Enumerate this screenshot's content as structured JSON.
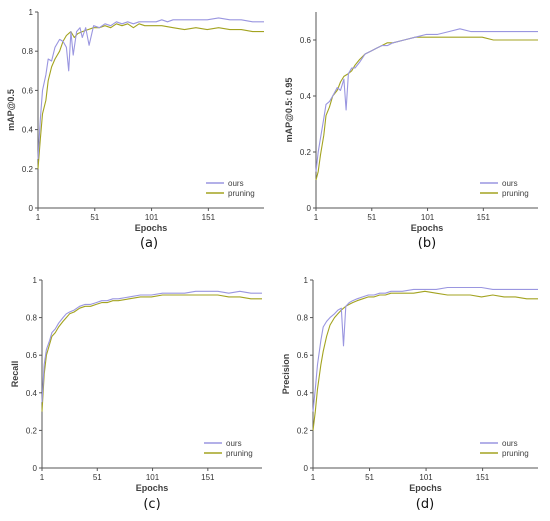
{
  "colors": {
    "ours": "#9a96e0",
    "pruning": "#a3a320",
    "axis": "#555555"
  },
  "legend": [
    "ours",
    "pruning"
  ],
  "chart_data": [
    {
      "type": "line",
      "caption": "(a)",
      "xlabel": "Epochs",
      "ylabel": "mAP@0.5",
      "xticks": [
        "1",
        "51",
        "101",
        "151"
      ],
      "yticks": [
        "0",
        "0.2",
        "0.4",
        "0.6",
        "0.8",
        "1"
      ],
      "xlim": [
        1,
        200
      ],
      "ylim": [
        0,
        1
      ],
      "legend_position": "bottom-right",
      "series": [
        {
          "name": "ours",
          "x": [
            1,
            3,
            5,
            8,
            10,
            13,
            16,
            20,
            23,
            26,
            28,
            30,
            32,
            35,
            38,
            40,
            43,
            46,
            50,
            55,
            60,
            65,
            70,
            75,
            80,
            85,
            90,
            95,
            100,
            105,
            110,
            115,
            120,
            130,
            140,
            150,
            160,
            170,
            180,
            190,
            200
          ],
          "values": [
            0.25,
            0.45,
            0.6,
            0.68,
            0.76,
            0.75,
            0.82,
            0.86,
            0.85,
            0.82,
            0.7,
            0.9,
            0.78,
            0.9,
            0.92,
            0.87,
            0.92,
            0.83,
            0.93,
            0.92,
            0.94,
            0.93,
            0.95,
            0.94,
            0.95,
            0.94,
            0.95,
            0.95,
            0.95,
            0.95,
            0.96,
            0.95,
            0.96,
            0.96,
            0.96,
            0.96,
            0.97,
            0.96,
            0.96,
            0.95,
            0.95
          ]
        },
        {
          "name": "pruning",
          "x": [
            1,
            3,
            5,
            8,
            10,
            13,
            16,
            20,
            23,
            26,
            30,
            33,
            36,
            40,
            45,
            50,
            55,
            60,
            65,
            70,
            75,
            80,
            85,
            90,
            95,
            100,
            110,
            120,
            130,
            140,
            150,
            160,
            170,
            180,
            190,
            200
          ],
          "values": [
            0.2,
            0.35,
            0.48,
            0.55,
            0.65,
            0.72,
            0.76,
            0.8,
            0.85,
            0.88,
            0.9,
            0.87,
            0.89,
            0.9,
            0.91,
            0.92,
            0.92,
            0.93,
            0.92,
            0.94,
            0.93,
            0.94,
            0.92,
            0.94,
            0.93,
            0.93,
            0.93,
            0.92,
            0.91,
            0.92,
            0.91,
            0.92,
            0.91,
            0.91,
            0.9,
            0.9
          ]
        }
      ]
    },
    {
      "type": "line",
      "caption": "(b)",
      "xlabel": "Epochs",
      "ylabel": "mAP@0.5: 0.95",
      "xticks": [
        "1",
        "51",
        "101",
        "151"
      ],
      "yticks": [
        "0",
        "0.2",
        "0.4",
        "0.6"
      ],
      "xlim": [
        1,
        200
      ],
      "ylim": [
        0,
        0.7
      ],
      "legend_position": "bottom-right",
      "series": [
        {
          "name": "ours",
          "x": [
            1,
            3,
            5,
            8,
            10,
            13,
            16,
            20,
            23,
            26,
            28,
            30,
            33,
            36,
            40,
            45,
            50,
            55,
            60,
            65,
            70,
            80,
            90,
            100,
            110,
            120,
            130,
            140,
            150,
            160,
            170,
            180,
            190,
            200
          ],
          "values": [
            0.13,
            0.2,
            0.25,
            0.32,
            0.37,
            0.38,
            0.4,
            0.43,
            0.42,
            0.46,
            0.35,
            0.48,
            0.5,
            0.5,
            0.52,
            0.55,
            0.56,
            0.57,
            0.58,
            0.58,
            0.59,
            0.6,
            0.61,
            0.62,
            0.62,
            0.63,
            0.64,
            0.63,
            0.63,
            0.63,
            0.63,
            0.63,
            0.63,
            0.63
          ]
        },
        {
          "name": "pruning",
          "x": [
            1,
            3,
            5,
            8,
            10,
            13,
            16,
            20,
            23,
            26,
            30,
            33,
            36,
            40,
            45,
            50,
            55,
            60,
            65,
            70,
            80,
            90,
            100,
            110,
            120,
            130,
            140,
            150,
            160,
            170,
            180,
            190,
            200
          ],
          "values": [
            0.1,
            0.13,
            0.19,
            0.26,
            0.33,
            0.36,
            0.4,
            0.42,
            0.45,
            0.47,
            0.48,
            0.49,
            0.51,
            0.53,
            0.55,
            0.56,
            0.57,
            0.58,
            0.59,
            0.59,
            0.6,
            0.61,
            0.61,
            0.61,
            0.61,
            0.61,
            0.61,
            0.61,
            0.6,
            0.6,
            0.6,
            0.6,
            0.6
          ]
        }
      ]
    },
    {
      "type": "line",
      "caption": "(c)",
      "xlabel": "Epochs",
      "ylabel": "Recall",
      "xticks": [
        "1",
        "51",
        "101",
        "151"
      ],
      "yticks": [
        "0",
        "0.2",
        "0.4",
        "0.6",
        "0.8",
        "1"
      ],
      "xlim": [
        1,
        200
      ],
      "ylim": [
        0,
        1
      ],
      "legend_position": "bottom-right",
      "series": [
        {
          "name": "ours",
          "x": [
            1,
            3,
            5,
            8,
            10,
            13,
            16,
            20,
            23,
            26,
            30,
            35,
            40,
            45,
            50,
            55,
            60,
            65,
            70,
            80,
            90,
            100,
            110,
            120,
            130,
            140,
            150,
            160,
            170,
            180,
            190,
            200
          ],
          "values": [
            0.35,
            0.55,
            0.63,
            0.68,
            0.72,
            0.74,
            0.77,
            0.8,
            0.82,
            0.83,
            0.84,
            0.86,
            0.87,
            0.87,
            0.88,
            0.89,
            0.89,
            0.9,
            0.9,
            0.91,
            0.92,
            0.92,
            0.93,
            0.93,
            0.93,
            0.94,
            0.94,
            0.94,
            0.93,
            0.94,
            0.93,
            0.93
          ]
        },
        {
          "name": "pruning",
          "x": [
            1,
            3,
            5,
            8,
            10,
            13,
            16,
            20,
            23,
            26,
            30,
            35,
            40,
            45,
            50,
            55,
            60,
            65,
            70,
            80,
            90,
            100,
            110,
            120,
            130,
            140,
            150,
            160,
            170,
            180,
            190,
            200
          ],
          "values": [
            0.3,
            0.5,
            0.6,
            0.66,
            0.7,
            0.72,
            0.75,
            0.78,
            0.8,
            0.82,
            0.83,
            0.85,
            0.86,
            0.86,
            0.87,
            0.88,
            0.88,
            0.89,
            0.89,
            0.9,
            0.91,
            0.91,
            0.92,
            0.92,
            0.92,
            0.92,
            0.92,
            0.92,
            0.91,
            0.91,
            0.9,
            0.9
          ]
        }
      ]
    },
    {
      "type": "line",
      "caption": "(d)",
      "xlabel": "Epochs",
      "ylabel": "Precision",
      "xticks": [
        "1",
        "51",
        "101",
        "151"
      ],
      "yticks": [
        "0",
        "0.2",
        "0.4",
        "0.6",
        "0.8",
        "1"
      ],
      "xlim": [
        1,
        200
      ],
      "ylim": [
        0,
        1
      ],
      "legend_position": "bottom-right",
      "series": [
        {
          "name": "ours",
          "x": [
            1,
            3,
            5,
            8,
            10,
            13,
            16,
            20,
            23,
            26,
            28,
            30,
            33,
            36,
            40,
            45,
            50,
            55,
            60,
            65,
            70,
            80,
            90,
            100,
            110,
            120,
            130,
            140,
            150,
            160,
            170,
            180,
            190,
            200
          ],
          "values": [
            0.3,
            0.42,
            0.55,
            0.68,
            0.75,
            0.78,
            0.8,
            0.82,
            0.84,
            0.85,
            0.65,
            0.86,
            0.88,
            0.89,
            0.9,
            0.91,
            0.92,
            0.92,
            0.93,
            0.93,
            0.94,
            0.94,
            0.95,
            0.95,
            0.95,
            0.96,
            0.96,
            0.96,
            0.96,
            0.95,
            0.95,
            0.95,
            0.95,
            0.95
          ]
        },
        {
          "name": "pruning",
          "x": [
            1,
            3,
            5,
            8,
            10,
            13,
            16,
            20,
            23,
            26,
            30,
            33,
            36,
            40,
            45,
            50,
            55,
            60,
            65,
            70,
            80,
            90,
            100,
            110,
            120,
            130,
            140,
            150,
            160,
            170,
            180,
            190,
            200
          ],
          "values": [
            0.2,
            0.3,
            0.42,
            0.55,
            0.62,
            0.7,
            0.76,
            0.8,
            0.82,
            0.84,
            0.86,
            0.87,
            0.88,
            0.89,
            0.9,
            0.91,
            0.91,
            0.92,
            0.92,
            0.93,
            0.93,
            0.93,
            0.94,
            0.93,
            0.92,
            0.92,
            0.92,
            0.91,
            0.92,
            0.91,
            0.91,
            0.9,
            0.9
          ]
        }
      ]
    }
  ]
}
